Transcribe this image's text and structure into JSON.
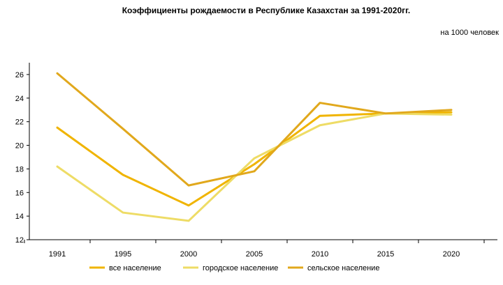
{
  "chart_data": {
    "type": "line",
    "title": "Коэффициенты  рождаемости  в Республике  Казахстан  за 1991-2020гг.",
    "unit_note": "на 1000 человек",
    "categories": [
      "1991",
      "1995",
      "2000",
      "2005",
      "2010",
      "2015",
      "2020"
    ],
    "ylim": [
      12,
      27
    ],
    "yticks": [
      12,
      14,
      16,
      18,
      20,
      22,
      24,
      26
    ],
    "grid": false,
    "legend_position": "bottom",
    "series": [
      {
        "name": "все население",
        "color": "#F0B400",
        "values": [
          21.5,
          17.5,
          14.9,
          18.4,
          22.5,
          22.7,
          22.8
        ]
      },
      {
        "name": "городское население",
        "color": "#EEDC66",
        "values": [
          18.2,
          14.3,
          13.6,
          18.9,
          21.7,
          22.7,
          22.6
        ]
      },
      {
        "name": "сельское население",
        "color": "#E1A81C",
        "values": [
          26.1,
          21.4,
          16.6,
          17.8,
          23.6,
          22.7,
          23.0
        ]
      }
    ]
  }
}
